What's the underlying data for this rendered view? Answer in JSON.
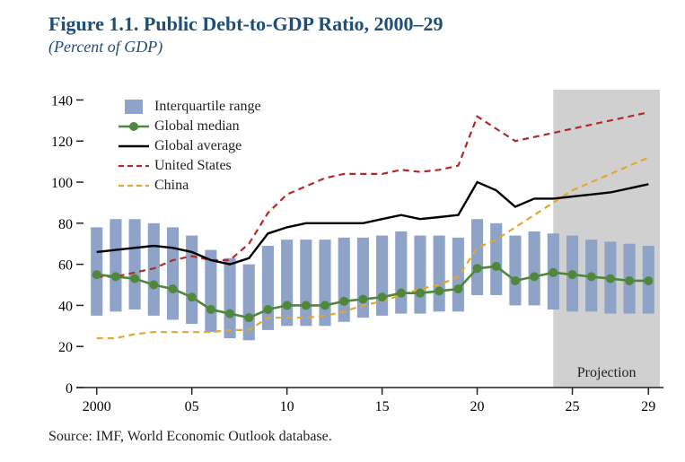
{
  "title": "Figure 1.1. Public Debt-to-GDP Ratio, 2000–29",
  "title_fontsize": 22,
  "title_color": "#1f4e79",
  "subtitle": "(Percent of GDP)",
  "subtitle_fontsize": 18,
  "source": "Source: IMF, World Economic Outlook database.",
  "source_fontsize": 16,
  "plot_bg": "#ffffff",
  "projection": {
    "label": "Projection",
    "start_year": 2024,
    "end_year": 2029.6,
    "fill": "#d0d0d0",
    "label_fontsize": 16
  },
  "axes": {
    "x": {
      "min": 1999.4,
      "max": 2029.6,
      "ticks": [
        2000,
        2005,
        2010,
        2015,
        2020,
        2025,
        2029
      ],
      "tick_labels": [
        "2000",
        "05",
        "10",
        "15",
        "20",
        "25",
        "29"
      ],
      "fontsize": 16
    },
    "y": {
      "min": 0,
      "max": 145,
      "ticks": [
        0,
        20,
        40,
        60,
        80,
        100,
        120,
        140
      ],
      "fontsize": 16,
      "tick_len": 8,
      "tick_color": "#222"
    }
  },
  "years": [
    2000,
    2001,
    2002,
    2003,
    2004,
    2005,
    2006,
    2007,
    2008,
    2009,
    2010,
    2011,
    2012,
    2013,
    2014,
    2015,
    2016,
    2017,
    2018,
    2019,
    2020,
    2021,
    2022,
    2023,
    2024,
    2025,
    2026,
    2027,
    2028,
    2029
  ],
  "iqr": {
    "color": "#8fa2c8",
    "width": 0.62,
    "low": [
      35,
      37,
      38,
      35,
      33,
      31,
      27,
      24,
      23,
      28,
      30,
      30,
      30,
      32,
      34,
      35,
      36,
      36,
      37,
      37,
      45,
      45,
      40,
      40,
      38,
      37,
      37,
      36,
      36,
      36
    ],
    "high": [
      78,
      82,
      82,
      80,
      78,
      74,
      67,
      63,
      60,
      69,
      72,
      72,
      72,
      73,
      73,
      74,
      76,
      74,
      74,
      73,
      82,
      80,
      74,
      76,
      75,
      74,
      72,
      71,
      70,
      69
    ]
  },
  "series": {
    "median": {
      "label": "Global median",
      "color": "#50873a",
      "width": 2.6,
      "marker": "circle",
      "marker_r": 5,
      "y": [
        55,
        54,
        53,
        50,
        48,
        44,
        38,
        36,
        34,
        38,
        40,
        40,
        40,
        42,
        43,
        44,
        46,
        46,
        47,
        48,
        58,
        59,
        52,
        54,
        56,
        55,
        54,
        53,
        52,
        52
      ]
    },
    "average": {
      "label": "Global average",
      "color": "#000000",
      "width": 2.4,
      "marker": "none",
      "y": [
        66,
        67,
        68,
        69,
        68,
        66,
        62,
        60,
        63,
        75,
        78,
        80,
        80,
        80,
        80,
        82,
        84,
        82,
        83,
        84,
        100,
        96,
        88,
        92,
        92,
        93,
        94,
        95,
        97,
        99
      ]
    },
    "us": {
      "label": "United States",
      "color": "#b22a2a",
      "width": 2.2,
      "marker": "none",
      "dash": "7,5",
      "y": [
        54,
        54,
        56,
        58,
        62,
        64,
        62,
        62,
        70,
        85,
        94,
        98,
        102,
        104,
        104,
        104,
        106,
        105,
        106,
        108,
        132,
        126,
        120,
        122,
        124,
        126,
        128,
        130,
        132,
        134
      ]
    },
    "china": {
      "label": "China",
      "color": "#e3a72f",
      "width": 2.2,
      "marker": "none",
      "dash": "7,5",
      "y": [
        24,
        24,
        26,
        27,
        27,
        27,
        27,
        28,
        28,
        34,
        34,
        34,
        35,
        37,
        40,
        42,
        45,
        48,
        50,
        54,
        68,
        72,
        78,
        84,
        90,
        96,
        100,
        104,
        108,
        112
      ]
    }
  },
  "legend": {
    "order": [
      "iqr",
      "median",
      "average",
      "us",
      "china"
    ],
    "labels": {
      "iqr": "Interquartile range",
      "median": "Global median",
      "average": "Global average",
      "us": "United States",
      "china": "China"
    }
  }
}
